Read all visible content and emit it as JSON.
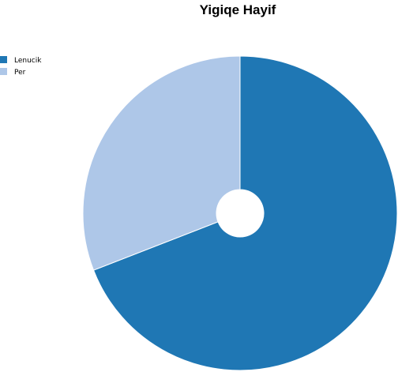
{
  "chart_data": {
    "type": "pie",
    "title": "Yigiqe Hayif",
    "donut": true,
    "start_angle_deg": 0,
    "legend_position": "top-left",
    "slices": [
      {
        "label": "Lenucik",
        "value": 69.1,
        "color": "#1f77b4"
      },
      {
        "label": "Per",
        "value": 30.9,
        "color": "#aec7e8"
      }
    ]
  }
}
